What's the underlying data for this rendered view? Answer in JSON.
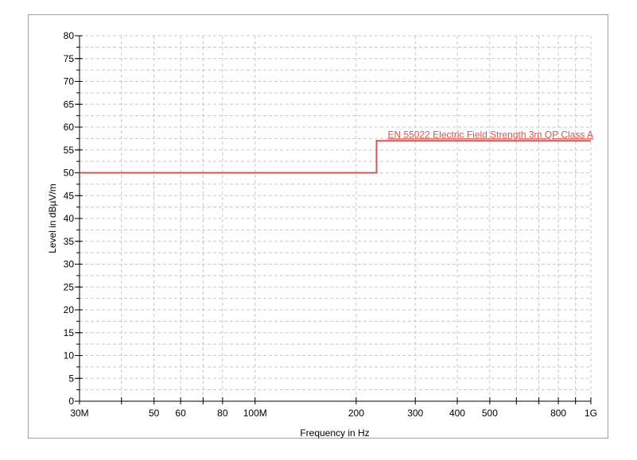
{
  "chart_data": {
    "type": "line",
    "title": "",
    "xlabel": "Frequency in Hz",
    "ylabel": "Level in dBµV/m",
    "x_scale": "log",
    "xlim": [
      30000000,
      1000000000
    ],
    "ylim": [
      0,
      80
    ],
    "grid": true,
    "x_ticks": [
      {
        "value": 30000000,
        "label": "30M"
      },
      {
        "value": 40000000,
        "label": ""
      },
      {
        "value": 50000000,
        "label": "50"
      },
      {
        "value": 60000000,
        "label": "60"
      },
      {
        "value": 70000000,
        "label": ""
      },
      {
        "value": 80000000,
        "label": "80"
      },
      {
        "value": 100000000,
        "label": "100M"
      },
      {
        "value": 200000000,
        "label": "200"
      },
      {
        "value": 300000000,
        "label": "300"
      },
      {
        "value": 400000000,
        "label": "400"
      },
      {
        "value": 500000000,
        "label": "500"
      },
      {
        "value": 600000000,
        "label": ""
      },
      {
        "value": 700000000,
        "label": ""
      },
      {
        "value": 800000000,
        "label": "800"
      },
      {
        "value": 900000000,
        "label": ""
      },
      {
        "value": 1000000000,
        "label": "1G"
      }
    ],
    "y_ticks": [
      0,
      5,
      10,
      15,
      20,
      25,
      30,
      35,
      40,
      45,
      50,
      55,
      60,
      65,
      70,
      75,
      80
    ],
    "series": [
      {
        "name": "EN 55022 Electric Field Strength 3m QP Class A",
        "color": "#d9534f",
        "points": [
          [
            30000000,
            50
          ],
          [
            230000000,
            50
          ],
          [
            230000000,
            57
          ],
          [
            1000000000,
            57
          ]
        ]
      }
    ]
  }
}
